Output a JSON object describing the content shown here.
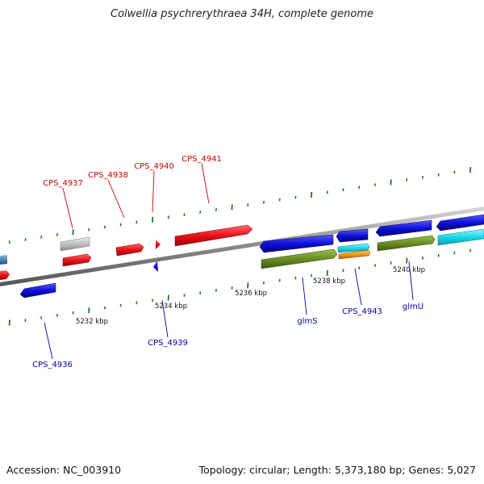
{
  "title": "Colwellia psychrerythraea 34H, complete genome",
  "footer": {
    "accession": "Accession: NC_003910",
    "summary": "Topology: circular; Length: 5,373,180 bp; Genes: 5,027"
  },
  "colors": {
    "red": "#e8121a",
    "blue": "#1010d8",
    "green": "#6b8e23",
    "cyan": "#19d9e6",
    "orange": "#f39a16",
    "gray": "#c0c0c0",
    "steel": "#4a86b8",
    "tick": "#1f7a1f",
    "label_red": "#cc0000",
    "label_blue": "#0000aa"
  },
  "kbp_labels": [
    "5232 kbp",
    "5234 kbp",
    "5236 kbp",
    "5238 kbp",
    "5240 kbp"
  ],
  "gene_labels": {
    "top": [
      "CPS_4937",
      "CPS_4938",
      "CPS_4940",
      "CPS_4941"
    ],
    "bottom": [
      "CPS_4936",
      "CPS_4939",
      "glmS",
      "CPS_4943",
      "glmU"
    ]
  }
}
